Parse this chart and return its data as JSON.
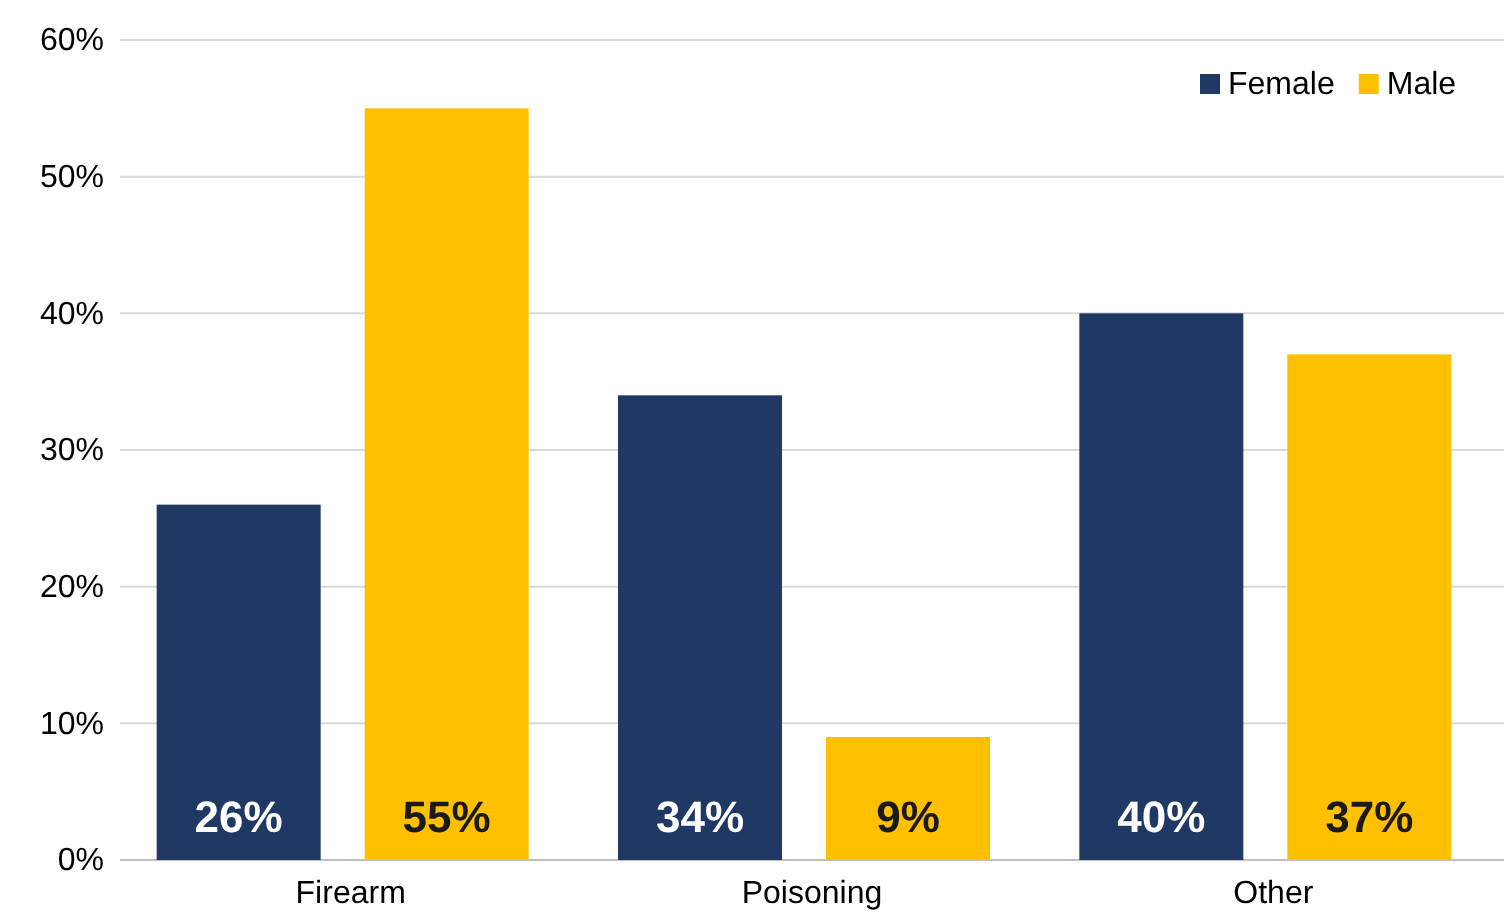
{
  "chart_data": {
    "type": "bar",
    "categories": [
      "Firearm",
      "Poisoning",
      "Other"
    ],
    "series": [
      {
        "name": "Female",
        "color": "#203864",
        "values": [
          26,
          34,
          40
        ],
        "value_labels": [
          "26%",
          "34%",
          "40%"
        ]
      },
      {
        "name": "Male",
        "color": "#ffc000",
        "values": [
          55,
          9,
          37
        ],
        "value_labels": [
          "55%",
          "9%",
          "37%"
        ]
      }
    ],
    "ylim": [
      0,
      60
    ],
    "yticks": [
      {
        "value": 0,
        "label": "0%"
      },
      {
        "value": 10,
        "label": "10%"
      },
      {
        "value": 20,
        "label": "20%"
      },
      {
        "value": 30,
        "label": "30%"
      },
      {
        "value": 40,
        "label": "40%"
      },
      {
        "value": 50,
        "label": "50%"
      },
      {
        "value": 60,
        "label": "60%"
      }
    ],
    "grid": "y",
    "legend": "top right"
  }
}
